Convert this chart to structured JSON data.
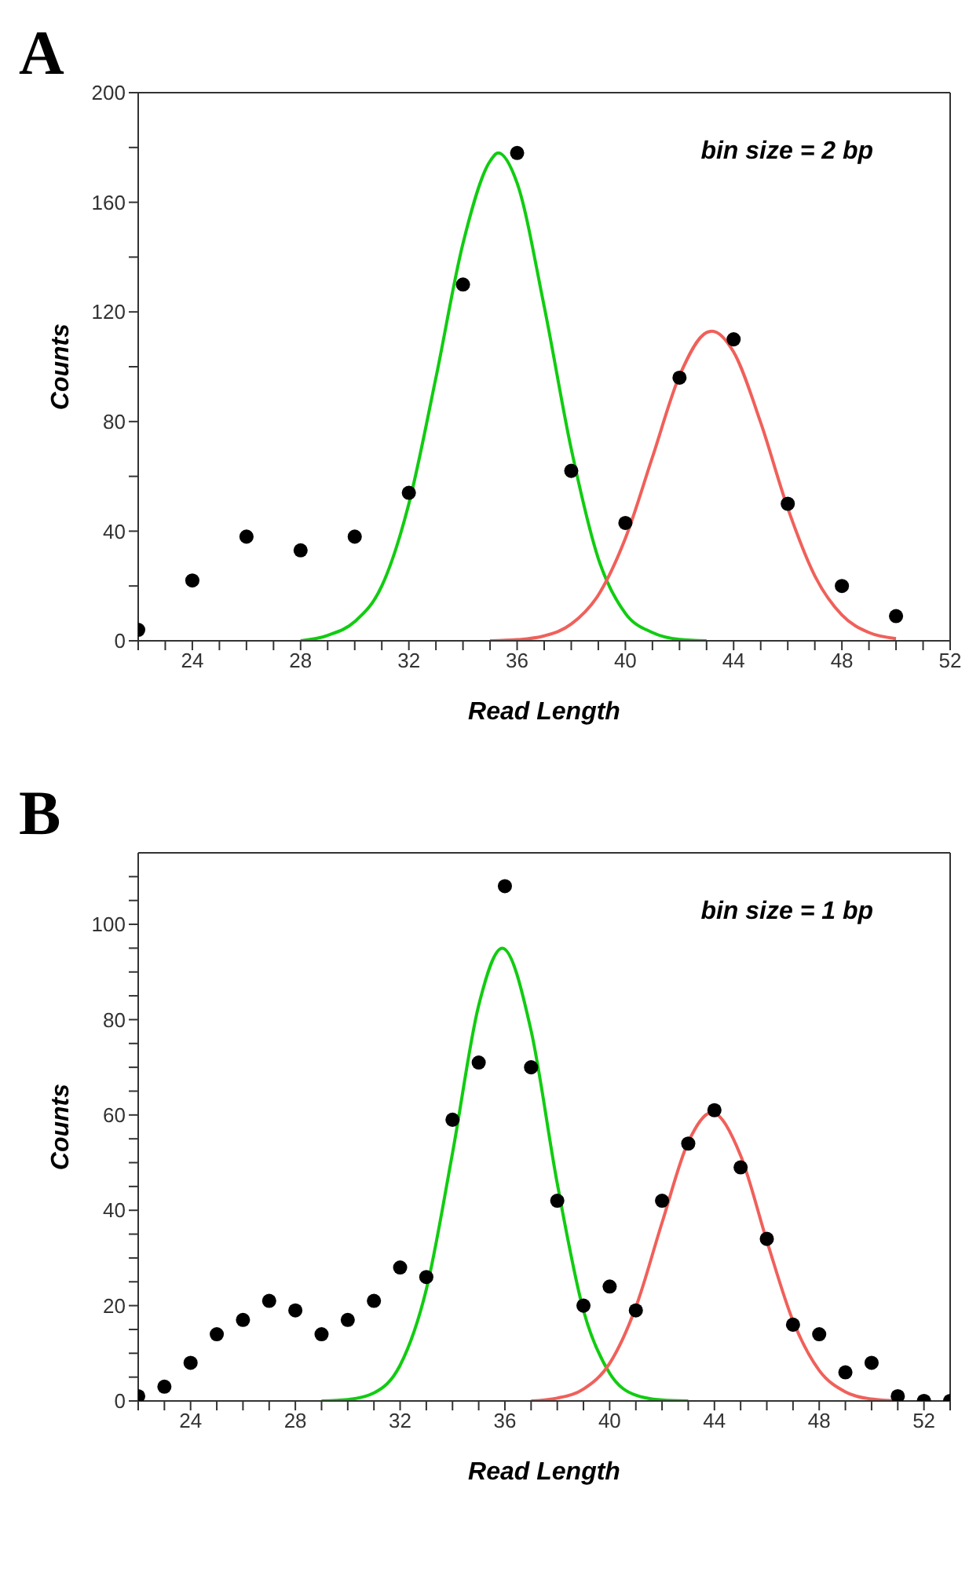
{
  "chart_data": [
    {
      "type": "scatter",
      "title": "A",
      "xlabel": "Read Length",
      "ylabel": "Counts",
      "annotations": [
        "bin size = 2 bp"
      ],
      "xlim": [
        22,
        52
      ],
      "xticks": [
        {
          "value": 22,
          "label": null
        },
        {
          "value": 23,
          "label": null
        },
        24,
        {
          "value": 25,
          "label": null
        },
        {
          "value": 26,
          "label": null
        },
        {
          "value": 27,
          "label": null
        },
        28,
        {
          "value": 29,
          "label": null
        },
        {
          "value": 30,
          "label": null
        },
        {
          "value": 31,
          "label": null
        },
        32,
        {
          "value": 33,
          "label": null
        },
        {
          "value": 34,
          "label": null
        },
        {
          "value": 35,
          "label": null
        },
        36,
        {
          "value": 37,
          "label": null
        },
        {
          "value": 38,
          "label": null
        },
        {
          "value": 39,
          "label": null
        },
        40,
        {
          "value": 41,
          "label": null
        },
        {
          "value": 42,
          "label": null
        },
        {
          "value": 43,
          "label": null
        },
        44,
        {
          "value": 45,
          "label": null
        },
        {
          "value": 46,
          "label": null
        },
        {
          "value": 47,
          "label": null
        },
        48,
        {
          "value": 49,
          "label": null
        },
        {
          "value": 50,
          "label": null
        },
        {
          "value": 51,
          "label": null
        },
        52
      ],
      "ylim": [
        0,
        200
      ],
      "yticks": [
        0,
        {
          "value": 20,
          "label": null
        },
        40,
        {
          "value": 60,
          "label": null
        },
        80,
        {
          "value": 100,
          "label": null
        },
        120,
        {
          "value": 140,
          "label": null
        },
        160,
        {
          "value": 180,
          "label": null
        },
        200
      ],
      "grid": false,
      "series": [
        {
          "type": "scatter",
          "marker": "circle",
          "color": "#000000",
          "x": [
            22,
            24,
            26,
            28,
            30,
            32,
            34,
            36,
            38,
            40,
            42,
            44,
            46,
            48,
            50
          ],
          "values": [
            4,
            22,
            38,
            33,
            38,
            54,
            130,
            178,
            62,
            43,
            96,
            110,
            50,
            20,
            9
          ]
        },
        {
          "type": "line",
          "marker": "none",
          "color": "#11cc11",
          "x": [
            28,
            29,
            30,
            31,
            32,
            33,
            34,
            35,
            35.3,
            36,
            37,
            38,
            39,
            40,
            41,
            42,
            43
          ],
          "values": [
            0,
            2,
            7,
            20,
            50,
            96,
            145,
            175,
            178,
            167,
            122,
            70,
            30,
            10,
            3,
            0.5,
            0
          ]
        },
        {
          "type": "line",
          "marker": "none",
          "color": "#f0605a",
          "x": [
            35,
            36,
            37,
            38,
            39,
            40,
            41,
            42,
            43,
            43.2,
            44,
            45,
            46,
            47,
            48,
            49,
            50
          ],
          "values": [
            0,
            0.4,
            1.8,
            6.1,
            16.7,
            37.4,
            67,
            96.7,
            112.5,
            113,
            105.4,
            79.6,
            48.4,
            23.7,
            9.4,
            3,
            0.8
          ]
        }
      ]
    },
    {
      "type": "scatter",
      "title": "B",
      "xlabel": "Read Length",
      "ylabel": "Counts",
      "annotations": [
        "bin size = 1 bp"
      ],
      "xlim": [
        22,
        53
      ],
      "xticks": [
        {
          "value": 22,
          "label": null
        },
        {
          "value": 23,
          "label": null
        },
        24,
        {
          "value": 25,
          "label": null
        },
        {
          "value": 26,
          "label": null
        },
        {
          "value": 27,
          "label": null
        },
        28,
        {
          "value": 29,
          "label": null
        },
        {
          "value": 30,
          "label": null
        },
        {
          "value": 31,
          "label": null
        },
        32,
        {
          "value": 33,
          "label": null
        },
        {
          "value": 34,
          "label": null
        },
        {
          "value": 35,
          "label": null
        },
        36,
        {
          "value": 37,
          "label": null
        },
        {
          "value": 38,
          "label": null
        },
        {
          "value": 39,
          "label": null
        },
        40,
        {
          "value": 41,
          "label": null
        },
        {
          "value": 42,
          "label": null
        },
        {
          "value": 43,
          "label": null
        },
        44,
        {
          "value": 45,
          "label": null
        },
        {
          "value": 46,
          "label": null
        },
        {
          "value": 47,
          "label": null
        },
        48,
        {
          "value": 49,
          "label": null
        },
        {
          "value": 50,
          "label": null
        },
        {
          "value": 51,
          "label": null
        },
        52,
        {
          "value": 53,
          "label": null
        }
      ],
      "ylim": [
        0,
        115
      ],
      "yticks": [
        0,
        {
          "value": 5,
          "label": null
        },
        {
          "value": 10,
          "label": null
        },
        {
          "value": 15,
          "label": null
        },
        20,
        {
          "value": 25,
          "label": null
        },
        {
          "value": 30,
          "label": null
        },
        {
          "value": 35,
          "label": null
        },
        40,
        {
          "value": 45,
          "label": null
        },
        {
          "value": 50,
          "label": null
        },
        {
          "value": 55,
          "label": null
        },
        60,
        {
          "value": 65,
          "label": null
        },
        {
          "value": 70,
          "label": null
        },
        {
          "value": 75,
          "label": null
        },
        80,
        {
          "value": 85,
          "label": null
        },
        {
          "value": 90,
          "label": null
        },
        {
          "value": 95,
          "label": null
        },
        100,
        {
          "value": 105,
          "label": null
        },
        {
          "value": 110,
          "label": null
        }
      ],
      "grid": false,
      "series": [
        {
          "type": "scatter",
          "marker": "circle",
          "color": "#000000",
          "x": [
            22,
            23,
            24,
            25,
            26,
            27,
            28,
            29,
            30,
            31,
            32,
            33,
            34,
            35,
            36,
            37,
            38,
            39,
            40,
            41,
            42,
            43,
            44,
            45,
            46,
            47,
            48,
            49,
            50,
            51,
            52,
            53
          ],
          "values": [
            1,
            3,
            8,
            14,
            17,
            21,
            19,
            14,
            17,
            21,
            28,
            26,
            59,
            71,
            108,
            70,
            42,
            20,
            24,
            19,
            42,
            54,
            61,
            49,
            34,
            16,
            14,
            6,
            8,
            1,
            0,
            0
          ]
        },
        {
          "type": "line",
          "marker": "none",
          "color": "#11cc11",
          "x": [
            29,
            30,
            31,
            32,
            33,
            34,
            35,
            35.9,
            37,
            38,
            39,
            40,
            41,
            42,
            43
          ],
          "values": [
            0,
            0.3,
            1.7,
            7.5,
            23.4,
            52,
            83,
            95,
            77.7,
            45.6,
            19,
            5.8,
            1.2,
            0.2,
            0
          ]
        },
        {
          "type": "line",
          "marker": "none",
          "color": "#f0605a",
          "x": [
            37,
            38,
            39,
            40,
            41,
            42,
            43,
            43.9,
            45,
            46,
            47,
            48,
            49,
            50,
            51
          ],
          "values": [
            0,
            0.6,
            2.5,
            7.9,
            19.7,
            37.4,
            54.3,
            60.5,
            51.5,
            33.6,
            16.8,
            6.4,
            1.9,
            0.4,
            0
          ]
        }
      ]
    }
  ]
}
